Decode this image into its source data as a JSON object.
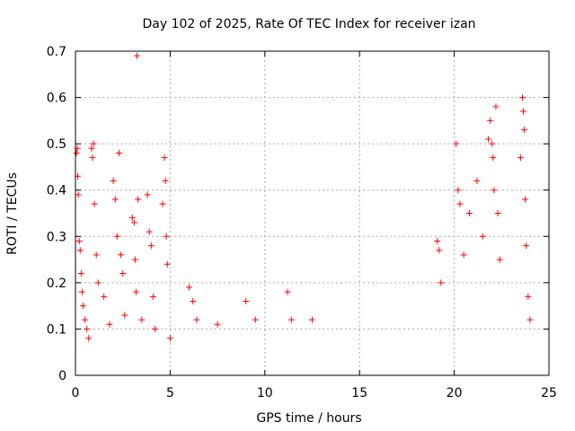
{
  "chart_data": {
    "type": "scatter",
    "title": "Day 102 of 2025, Rate Of TEC Index for receiver izan",
    "xlabel": "GPS time / hours",
    "ylabel": "ROTI / TECUs",
    "xlim": [
      0,
      25
    ],
    "ylim": [
      0,
      0.7
    ],
    "xticks": [
      0,
      5,
      10,
      15,
      20,
      25
    ],
    "yticks": [
      0,
      0.1,
      0.2,
      0.3,
      0.4,
      0.5,
      0.6,
      0.7
    ],
    "xtick_labels": [
      "0",
      "5",
      "10",
      "15",
      "20",
      "25"
    ],
    "ytick_labels": [
      "0",
      "0.1",
      "0.2",
      "0.3",
      "0.4",
      "0.5",
      "0.6",
      "0.7"
    ],
    "grid": true,
    "marker": "plus",
    "color": "#ff0000",
    "series": [
      {
        "values": [
          [
            0.05,
            0.48
          ],
          [
            0.1,
            0.49
          ],
          [
            0.12,
            0.43
          ],
          [
            0.15,
            0.39
          ],
          [
            0.2,
            0.29
          ],
          [
            0.25,
            0.27
          ],
          [
            0.3,
            0.22
          ],
          [
            0.35,
            0.18
          ],
          [
            0.4,
            0.15
          ],
          [
            0.5,
            0.12
          ],
          [
            0.6,
            0.1
          ],
          [
            0.7,
            0.08
          ],
          [
            0.85,
            0.49
          ],
          [
            0.9,
            0.47
          ],
          [
            0.95,
            0.5
          ],
          [
            1.0,
            0.37
          ],
          [
            1.1,
            0.26
          ],
          [
            1.2,
            0.2
          ],
          [
            1.5,
            0.17
          ],
          [
            1.8,
            0.11
          ],
          [
            2.0,
            0.42
          ],
          [
            2.1,
            0.38
          ],
          [
            2.2,
            0.3
          ],
          [
            2.3,
            0.48
          ],
          [
            2.4,
            0.26
          ],
          [
            2.5,
            0.22
          ],
          [
            2.6,
            0.13
          ],
          [
            3.0,
            0.34
          ],
          [
            3.1,
            0.33
          ],
          [
            3.15,
            0.25
          ],
          [
            3.2,
            0.18
          ],
          [
            3.25,
            0.69
          ],
          [
            3.3,
            0.38
          ],
          [
            3.5,
            0.12
          ],
          [
            3.8,
            0.39
          ],
          [
            3.9,
            0.31
          ],
          [
            4.0,
            0.28
          ],
          [
            4.1,
            0.17
          ],
          [
            4.2,
            0.1
          ],
          [
            4.6,
            0.37
          ],
          [
            4.7,
            0.47
          ],
          [
            4.75,
            0.42
          ],
          [
            4.8,
            0.3
          ],
          [
            4.85,
            0.24
          ],
          [
            5.0,
            0.08
          ],
          [
            6.0,
            0.19
          ],
          [
            6.2,
            0.16
          ],
          [
            6.4,
            0.12
          ],
          [
            7.5,
            0.11
          ],
          [
            9.0,
            0.16
          ],
          [
            9.5,
            0.12
          ],
          [
            11.2,
            0.18
          ],
          [
            11.4,
            0.12
          ],
          [
            12.5,
            0.12
          ],
          [
            19.1,
            0.29
          ],
          [
            19.2,
            0.27
          ],
          [
            19.3,
            0.2
          ],
          [
            20.1,
            0.5
          ],
          [
            20.2,
            0.4
          ],
          [
            20.3,
            0.37
          ],
          [
            20.5,
            0.26
          ],
          [
            20.8,
            0.35
          ],
          [
            21.2,
            0.42
          ],
          [
            21.5,
            0.3
          ],
          [
            21.8,
            0.51
          ],
          [
            21.9,
            0.55
          ],
          [
            22.0,
            0.5
          ],
          [
            22.05,
            0.47
          ],
          [
            22.1,
            0.4
          ],
          [
            22.2,
            0.58
          ],
          [
            22.3,
            0.35
          ],
          [
            22.4,
            0.25
          ],
          [
            23.5,
            0.47
          ],
          [
            23.6,
            0.6
          ],
          [
            23.65,
            0.57
          ],
          [
            23.7,
            0.53
          ],
          [
            23.75,
            0.38
          ],
          [
            23.8,
            0.28
          ],
          [
            23.9,
            0.17
          ],
          [
            24.0,
            0.12
          ]
        ]
      }
    ]
  }
}
